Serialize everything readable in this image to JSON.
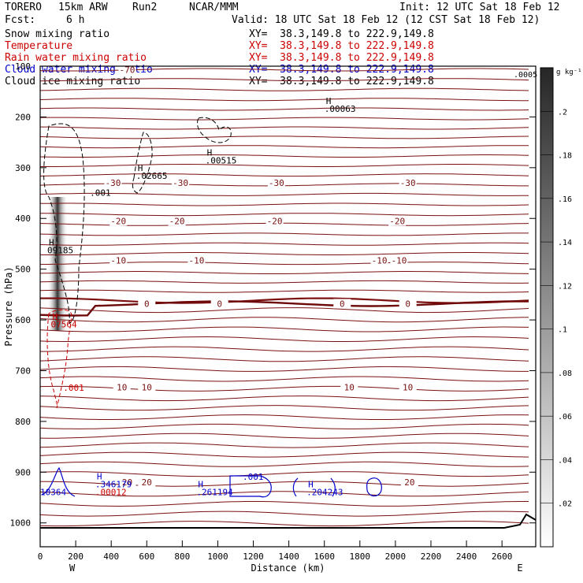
{
  "header": {
    "model": "TORERO",
    "resolution": "15km ARW",
    "run": "Run2",
    "org": "NCAR/MMM",
    "init": "Init: 12 UTC Sat 18 Feb 12",
    "fcst": "Fcst:",
    "fcst_hours": "6 h",
    "valid": "Valid: 18 UTC Sat 18 Feb 12 (12 CST Sat 18 Feb 12)"
  },
  "legend": [
    {
      "label": "Snow mixing ratio",
      "xy": "XY=  38.3,149.8 to 222.9,149.8",
      "color": "#000000"
    },
    {
      "label": "Temperature",
      "xy": "XY=  38.3,149.8 to 222.9,149.8",
      "color": "#cc0000"
    },
    {
      "label": "Rain water mixing ratio",
      "xy": "XY=  38.3,149.8 to 222.9,149.8",
      "color": "#cc0000"
    },
    {
      "label": "Cloud water mixing ratio",
      "xy": "XY=  38.3,149.8 to 222.9,149.8",
      "color": "#0000cc"
    },
    {
      "label": "Cloud ice mixing ratio",
      "xy": "XY=  38.3,149.8 to 222.9,149.8",
      "color": "#000000"
    }
  ],
  "chart_data": {
    "type": "contour",
    "xlabel": "Distance (km)",
    "ylabel": "Pressure (hPa)",
    "x_ticks": [
      0,
      200,
      400,
      600,
      800,
      1000,
      1200,
      1400,
      1600,
      1800,
      2000,
      2200,
      2400,
      2600
    ],
    "x_tick_labels": [
      "0",
      "200",
      "400",
      "600",
      "800",
      "1000",
      "1200",
      "1400",
      "1600",
      "1800",
      "2000",
      "2200",
      "2400",
      "2600"
    ],
    "xlim": [
      0,
      2790
    ],
    "x_end_labels": {
      "left": "W",
      "right": "E"
    },
    "y_ticks": [
      100,
      200,
      300,
      400,
      500,
      600,
      700,
      800,
      900,
      1000
    ],
    "y_tick_labels": [
      "100",
      "200",
      "300",
      "400",
      "500",
      "600",
      "700",
      "800",
      "900",
      "1000"
    ],
    "ylim": [
      1047,
      100
    ],
    "colorbar": {
      "unit": "g kg⁻¹",
      "ticks": [
        0.02,
        0.04,
        0.06,
        0.08,
        0.1,
        0.12,
        0.14,
        0.16,
        0.18,
        0.2
      ],
      "tick_labels": [
        ".02",
        ".04",
        ".06",
        ".08",
        ".1",
        ".12",
        ".14",
        ".16",
        ".18",
        ".2"
      ],
      "max_label": ".0005",
      "vmax": 0.22
    },
    "isotherms": [
      {
        "p": 107,
        "label": "-70",
        "label_x": 490
      },
      {
        "p": 330,
        "label": "-30",
        "label_x": 410
      },
      {
        "p": 330,
        "label": "-30",
        "label_x": 790
      },
      {
        "p": 330,
        "label": "-30",
        "label_x": 1330
      },
      {
        "p": 330,
        "label": "-30",
        "label_x": 2070
      },
      {
        "p": 405,
        "label": "-20",
        "label_x": 440
      },
      {
        "p": 405,
        "label": "-20",
        "label_x": 770
      },
      {
        "p": 405,
        "label": "-20",
        "label_x": 1320
      },
      {
        "p": 405,
        "label": "-20",
        "label_x": 2010
      },
      {
        "p": 483,
        "label": "-10",
        "label_x": 440
      },
      {
        "p": 483,
        "label": "-10",
        "label_x": 880
      },
      {
        "p": 483,
        "label": "-10",
        "label_x": 1910
      },
      {
        "p": 483,
        "label": "-10",
        "label_x": 2020
      },
      {
        "p": 568,
        "label": "0",
        "label_x": 600
      },
      {
        "p": 568,
        "label": "0",
        "label_x": 1010
      },
      {
        "p": 568,
        "label": "0",
        "label_x": 1700
      },
      {
        "p": 568,
        "label": "0",
        "label_x": 2070
      },
      {
        "p": 733,
        "label": "10",
        "label_x": 460
      },
      {
        "p": 733,
        "label": "10",
        "label_x": 600
      },
      {
        "p": 733,
        "label": "10",
        "label_x": 1740
      },
      {
        "p": 733,
        "label": "10",
        "label_x": 2070
      },
      {
        "p": 920,
        "label": "20",
        "label_x": 490
      },
      {
        "p": 920,
        "label": "20",
        "label_x": 600
      },
      {
        "p": 920,
        "label": "20",
        "label_x": 2080
      }
    ],
    "extrema": [
      {
        "symbol": "H",
        "value": ".00063",
        "x": 1600,
        "p": 190,
        "color": "#000000"
      },
      {
        "symbol": "H",
        "value": ".00515",
        "x": 930,
        "p": 292,
        "color": "#000000"
      },
      {
        "symbol": "H",
        "value": ".02665",
        "x": 540,
        "p": 322,
        "color": "#000000"
      },
      {
        "symbol": "",
        "value": ".001",
        "x": 280,
        "p": 355,
        "color": "#000000"
      },
      {
        "symbol": "H",
        "value": "09185",
        "x": 40,
        "p": 469,
        "color": "#000000"
      },
      {
        "symbol": "H",
        "value": "07564",
        "x": 60,
        "p": 615,
        "color": "#cc0000"
      },
      {
        "symbol": "",
        "value": ".001",
        "x": 130,
        "p": 740,
        "color": "#cc0000"
      },
      {
        "symbol": "H",
        "value": ".346179",
        "x": 310,
        "p": 930,
        "color": "#0000cc"
      },
      {
        "symbol": "",
        "value": "10364",
        "x": 0,
        "p": 945,
        "color": "#0000cc"
      },
      {
        "symbol": "",
        "value": ".00012",
        "x": 310,
        "p": 945,
        "color": "#cc0000"
      },
      {
        "symbol": "H",
        "value": ".261194",
        "x": 880,
        "p": 945,
        "color": "#0000cc"
      },
      {
        "symbol": "",
        "value": ".001",
        "x": 1140,
        "p": 915,
        "color": "#0000cc"
      },
      {
        "symbol": "H",
        "value": ".204243",
        "x": 1500,
        "p": 945,
        "color": "#0000cc"
      }
    ]
  }
}
